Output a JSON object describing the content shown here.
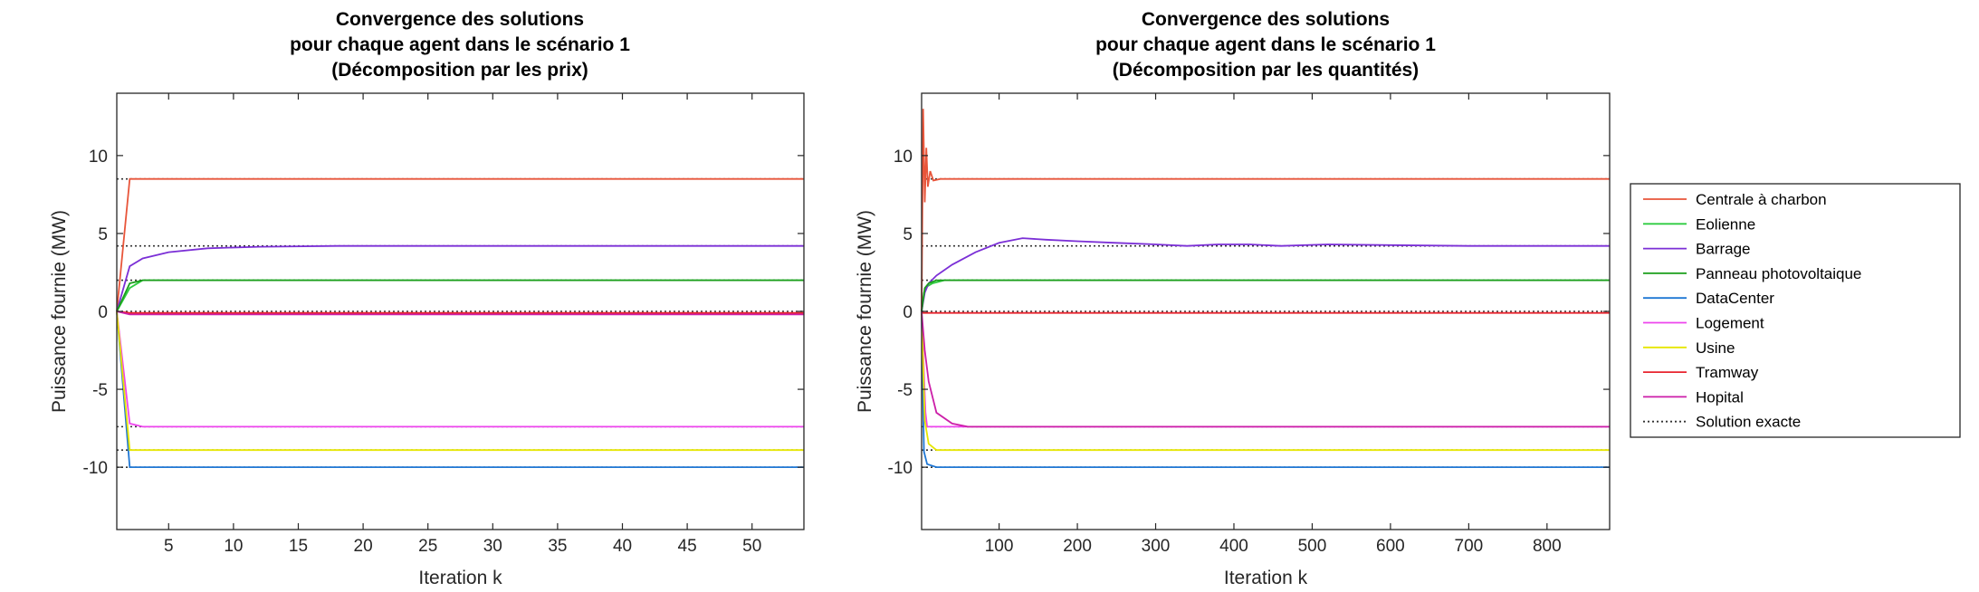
{
  "chart_data": [
    {
      "type": "line",
      "title": [
        "Convergence des solutions",
        "pour chaque agent dans le scénario 1",
        "(Décomposition par les prix)"
      ],
      "xlabel": "Iteration k",
      "ylabel": "Puissance fournie (MW)",
      "xlim": [
        1,
        54
      ],
      "ylim": [
        -14,
        14
      ],
      "xticks": [
        5,
        10,
        15,
        20,
        25,
        30,
        35,
        40,
        45,
        50
      ],
      "yticks": [
        -10,
        -5,
        0,
        5,
        10
      ],
      "grid": false,
      "series": [
        {
          "name": "Centrale à charbon",
          "color": "#e8553a",
          "x": [
            1,
            2,
            54
          ],
          "y": [
            0,
            8.5,
            8.5
          ]
        },
        {
          "name": "Eolienne",
          "color": "#2ecc40",
          "x": [
            1,
            2,
            3,
            54
          ],
          "y": [
            0,
            1.5,
            2.0,
            2.0
          ]
        },
        {
          "name": "Barrage",
          "color": "#7b2fd6",
          "x": [
            1,
            2,
            3,
            5,
            8,
            12,
            18,
            25,
            54
          ],
          "y": [
            0,
            2.9,
            3.4,
            3.8,
            4.05,
            4.15,
            4.2,
            4.2,
            4.2
          ]
        },
        {
          "name": "Panneau photovoltaique",
          "color": "#1a9e1a",
          "x": [
            1,
            2,
            3,
            54
          ],
          "y": [
            0,
            1.8,
            2.0,
            2.0
          ]
        },
        {
          "name": "DataCenter",
          "color": "#1f77d4",
          "x": [
            1,
            2,
            54
          ],
          "y": [
            0,
            -10.0,
            -10.0
          ]
        },
        {
          "name": "Logement",
          "color": "#ee44ee",
          "x": [
            1,
            2,
            3,
            54
          ],
          "y": [
            0,
            -7.2,
            -7.4,
            -7.4
          ]
        },
        {
          "name": "Usine",
          "color": "#e6e600",
          "x": [
            1,
            2,
            54
          ],
          "y": [
            0,
            -8.9,
            -8.9
          ]
        },
        {
          "name": "Tramway",
          "color": "#e8242e",
          "x": [
            1,
            2,
            54
          ],
          "y": [
            0,
            -0.1,
            -0.1
          ]
        },
        {
          "name": "Hopital",
          "color": "#cc1fa8",
          "x": [
            1,
            2,
            54
          ],
          "y": [
            0,
            -0.2,
            -0.2
          ]
        }
      ],
      "exact_solution": {
        "name": "Solution exacte",
        "values": [
          8.5,
          4.2,
          2.0,
          0.0,
          -7.4,
          -8.9,
          -10.0
        ]
      }
    },
    {
      "type": "line",
      "title": [
        "Convergence des solutions",
        "pour chaque agent dans le scénario 1",
        "(Décomposition par les quantités)"
      ],
      "xlabel": "Iteration k",
      "ylabel": "Puissance fournie (MW)",
      "xlim": [
        1,
        880
      ],
      "ylim": [
        -14,
        14
      ],
      "xticks": [
        100,
        200,
        300,
        400,
        500,
        600,
        700,
        800
      ],
      "yticks": [
        -10,
        -5,
        0,
        5,
        10
      ],
      "grid": false,
      "legend_position": "outside-right",
      "series": [
        {
          "name": "Centrale à charbon",
          "color": "#e8553a",
          "x": [
            1,
            3,
            5,
            7,
            9,
            12,
            16,
            25,
            880
          ],
          "y": [
            0,
            13,
            7,
            10.5,
            8,
            9,
            8.4,
            8.5,
            8.5
          ]
        },
        {
          "name": "Eolienne",
          "color": "#2ecc40",
          "x": [
            1,
            4,
            8,
            15,
            30,
            880
          ],
          "y": [
            0,
            1.2,
            1.6,
            1.8,
            2.0,
            2.0
          ]
        },
        {
          "name": "Barrage",
          "color": "#7b2fd6",
          "x": [
            1,
            5,
            10,
            20,
            40,
            70,
            100,
            130,
            160,
            200,
            250,
            300,
            340,
            380,
            420,
            460,
            520,
            600,
            700,
            880
          ],
          "y": [
            0,
            1.2,
            1.8,
            2.3,
            3.0,
            3.8,
            4.4,
            4.7,
            4.6,
            4.5,
            4.4,
            4.3,
            4.2,
            4.3,
            4.3,
            4.2,
            4.3,
            4.25,
            4.2,
            4.2
          ]
        },
        {
          "name": "Panneau photovoltaique",
          "color": "#1a9e1a",
          "x": [
            1,
            5,
            10,
            20,
            880
          ],
          "y": [
            0,
            1.5,
            1.8,
            2.0,
            2.0
          ]
        },
        {
          "name": "DataCenter",
          "color": "#1f77d4",
          "x": [
            1,
            4,
            8,
            20,
            880
          ],
          "y": [
            0,
            -9.0,
            -9.8,
            -10.0,
            -10.0
          ]
        },
        {
          "name": "Logement",
          "color": "#ee44ee",
          "x": [
            1,
            4,
            6,
            8,
            880
          ],
          "y": [
            0,
            -4.0,
            -6.5,
            -7.4,
            -7.4
          ]
        },
        {
          "name": "Usine",
          "color": "#e6e600",
          "x": [
            1,
            5,
            10,
            20,
            880
          ],
          "y": [
            0,
            -7.0,
            -8.5,
            -8.9,
            -8.9
          ]
        },
        {
          "name": "Tramway",
          "color": "#e8242e",
          "x": [
            1,
            3,
            880
          ],
          "y": [
            0,
            -0.1,
            -0.1
          ]
        },
        {
          "name": "Hopital",
          "color": "#cc1fa8",
          "x": [
            1,
            5,
            10,
            20,
            40,
            60,
            880
          ],
          "y": [
            0,
            -2.5,
            -4.5,
            -6.5,
            -7.2,
            -7.4,
            -7.4
          ]
        }
      ],
      "exact_solution": {
        "name": "Solution exacte",
        "values": [
          8.5,
          4.2,
          2.0,
          0.0,
          -7.4,
          -8.9,
          -10.0
        ]
      }
    }
  ],
  "legend": {
    "items": [
      {
        "name": "Centrale à charbon",
        "color": "#e8553a",
        "dotted": false
      },
      {
        "name": "Eolienne",
        "color": "#2ecc40",
        "dotted": false
      },
      {
        "name": "Barrage",
        "color": "#7b2fd6",
        "dotted": false
      },
      {
        "name": "Panneau photovoltaique",
        "color": "#1a9e1a",
        "dotted": false
      },
      {
        "name": "DataCenter",
        "color": "#1f77d4",
        "dotted": false
      },
      {
        "name": "Logement",
        "color": "#ee44ee",
        "dotted": false
      },
      {
        "name": "Usine",
        "color": "#e6e600",
        "dotted": false
      },
      {
        "name": "Tramway",
        "color": "#e8242e",
        "dotted": false
      },
      {
        "name": "Hopital",
        "color": "#cc1fa8",
        "dotted": false
      },
      {
        "name": "Solution exacte",
        "color": "#333333",
        "dotted": true
      }
    ]
  }
}
